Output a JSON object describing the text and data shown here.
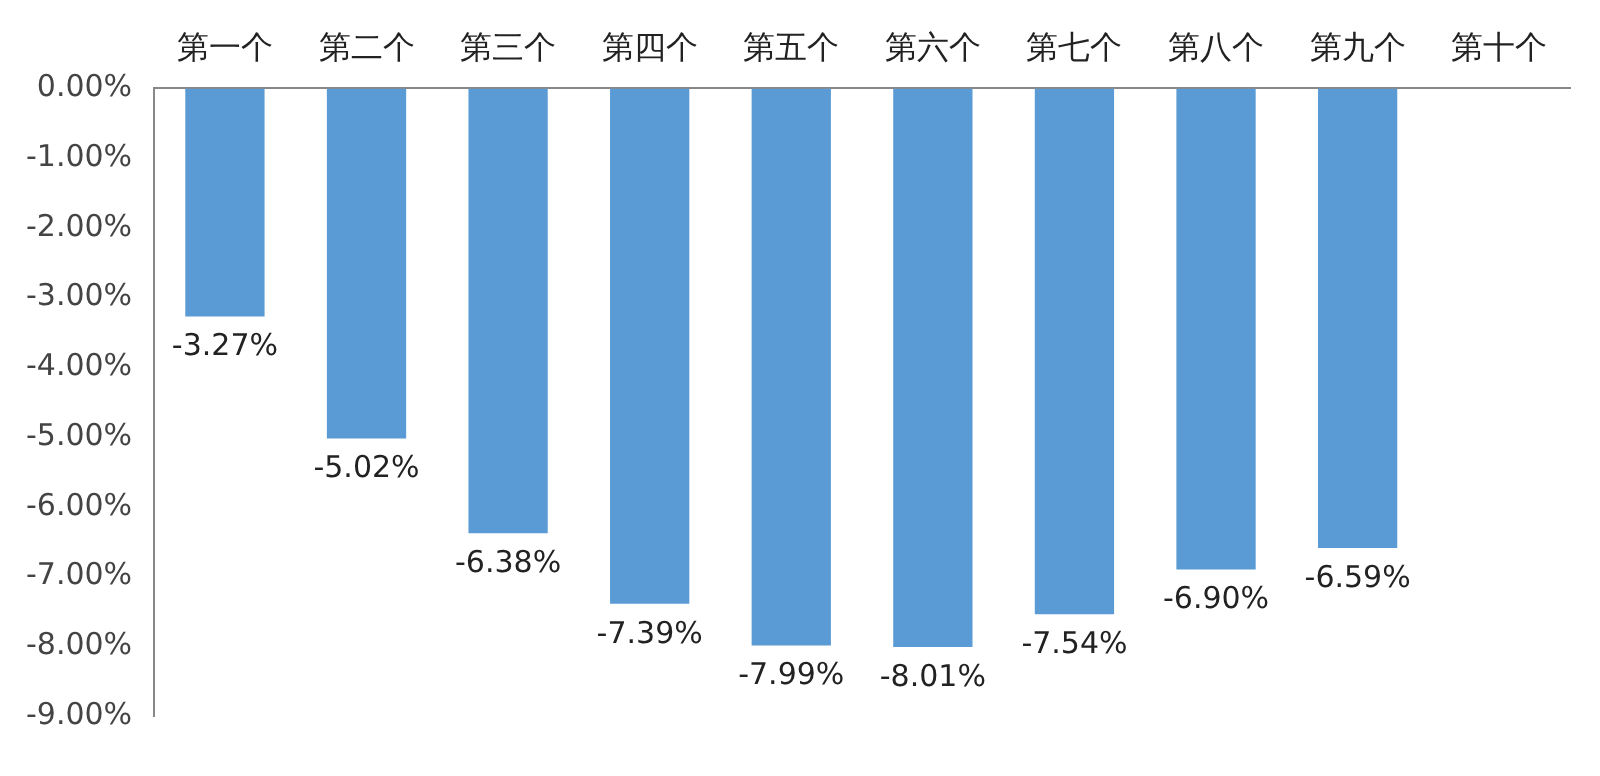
{
  "chart_data": {
    "type": "bar",
    "categories": [
      "第一个",
      "第二个",
      "第三个",
      "第四个",
      "第五个",
      "第六个",
      "第七个",
      "第八个",
      "第九个",
      "第十个"
    ],
    "values": [
      -3.27,
      -5.02,
      -6.38,
      -7.39,
      -7.99,
      -8.01,
      -7.54,
      -6.9,
      -6.59,
      null
    ],
    "value_labels": [
      "-3.27%",
      "-5.02%",
      "-6.38%",
      "-7.39%",
      "-7.99%",
      "-8.01%",
      "-7.54%",
      "-6.90%",
      "-6.59%",
      null
    ],
    "color": "#5b9bd5",
    "ylim": [
      -9,
      0
    ],
    "yticks": [
      {
        "value": 0,
        "label": "0.00%"
      },
      {
        "value": -1,
        "label": "-1.00%"
      },
      {
        "value": -2,
        "label": "-2.00%"
      },
      {
        "value": -3,
        "label": "-3.00%"
      },
      {
        "value": -4,
        "label": "-4.00%"
      },
      {
        "value": -5,
        "label": "-5.00%"
      },
      {
        "value": -6,
        "label": "-6.00%"
      },
      {
        "value": -7,
        "label": "-7.00%"
      },
      {
        "value": -8,
        "label": "-8.00%"
      },
      {
        "value": -9,
        "label": "-9.00%"
      }
    ],
    "grid": false
  }
}
